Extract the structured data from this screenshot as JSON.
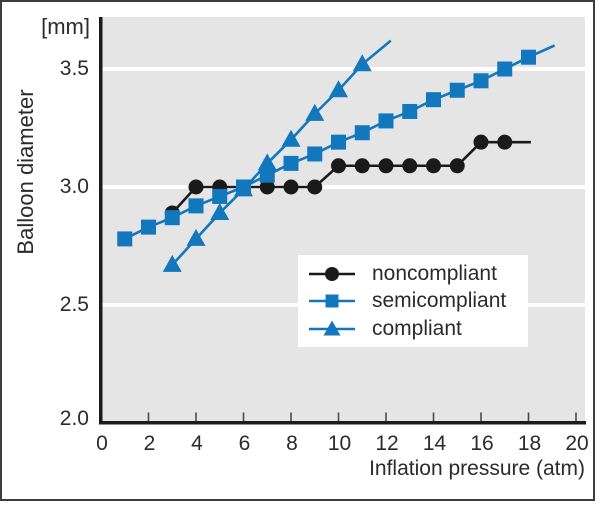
{
  "figure": {
    "border_color": "#3d3d3d",
    "background": "#ffffff",
    "text_color": "#2b2b2b"
  },
  "chart_data": {
    "type": "line",
    "title": "",
    "xlabel": "Inflation pressure (atm)",
    "ylabel": "Balloon diameter",
    "ylabel_unit": "[mm]",
    "xlim": [
      0,
      20
    ],
    "ylim": [
      2.0,
      3.72
    ],
    "plot_bg": "#e5e5e6",
    "gridline_color": "#ffffff",
    "gridlines_at": [
      2.5,
      3.0,
      3.5
    ],
    "grid": "horizontal white lines on gray panel",
    "legend_position": "inside lower right, white box",
    "x_ticks": [
      {
        "v": 0,
        "label": "0"
      },
      {
        "v": 2,
        "label": "2"
      },
      {
        "v": 4,
        "label": "4"
      },
      {
        "v": 6,
        "label": "6"
      },
      {
        "v": 8,
        "label": "8"
      },
      {
        "v": 10,
        "label": "10"
      },
      {
        "v": 12,
        "label": "12"
      },
      {
        "v": 14,
        "label": "14"
      },
      {
        "v": 16,
        "label": "16"
      },
      {
        "v": 18,
        "label": "18"
      },
      {
        "v": 20,
        "label": "20"
      }
    ],
    "y_ticks": [
      {
        "v": 3.5,
        "label": "3.5"
      },
      {
        "v": 3.0,
        "label": "3.0"
      },
      {
        "v": 2.5,
        "label": "2.5"
      },
      {
        "v": 2.0,
        "label": "2.0"
      }
    ],
    "series": [
      {
        "name": "noncompliant",
        "color": "#1a1a1a",
        "marker": "circle",
        "x": [
          3,
          4,
          5,
          6,
          7,
          8,
          9,
          10,
          11,
          12,
          13,
          14,
          15,
          16,
          17
        ],
        "y": [
          2.89,
          3.0,
          3.0,
          3.0,
          3.0,
          3.0,
          3.0,
          3.09,
          3.09,
          3.09,
          3.09,
          3.09,
          3.09,
          3.19,
          3.19
        ],
        "line_extends_to": {
          "x": 18.1,
          "y": 3.19
        }
      },
      {
        "name": "semicompliant",
        "color": "#1277bd",
        "marker": "square",
        "x": [
          1,
          2,
          3,
          4,
          5,
          6,
          7,
          8,
          9,
          10,
          11,
          12,
          13,
          14,
          15,
          16,
          17,
          18
        ],
        "y": [
          2.78,
          2.83,
          2.87,
          2.92,
          2.96,
          3.0,
          3.05,
          3.1,
          3.14,
          3.19,
          3.23,
          3.28,
          3.32,
          3.37,
          3.41,
          3.45,
          3.5,
          3.55
        ],
        "line_extends_to": {
          "x": 19.1,
          "y": 3.6
        }
      },
      {
        "name": "compliant",
        "color": "#1277bd",
        "marker": "triangle",
        "x": [
          3,
          4,
          5,
          6,
          7,
          8,
          9,
          10,
          11
        ],
        "y": [
          2.67,
          2.78,
          2.89,
          2.99,
          3.1,
          3.2,
          3.31,
          3.41,
          3.52
        ],
        "line_extends_to": {
          "x": 12.2,
          "y": 3.62
        }
      }
    ],
    "legend": [
      {
        "label": "noncompliant"
      },
      {
        "label": "semicompliant"
      },
      {
        "label": "compliant"
      }
    ]
  }
}
